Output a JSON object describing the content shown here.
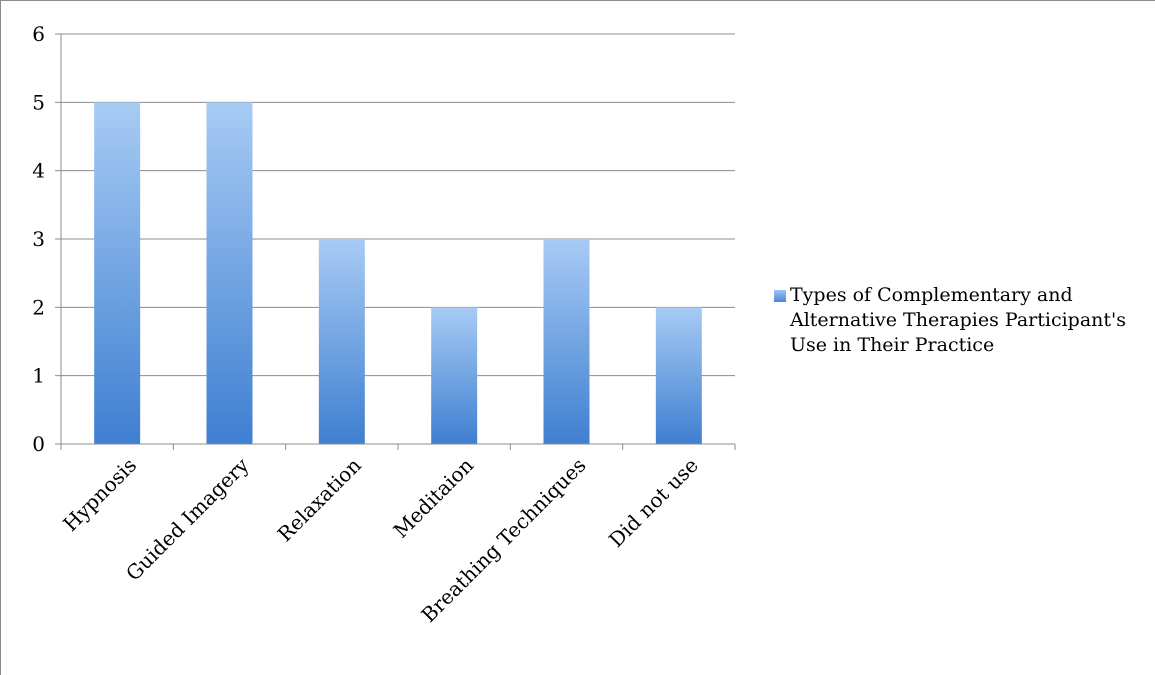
{
  "chart_data": {
    "type": "bar",
    "categories": [
      "Hypnosis",
      "Guided Imagery",
      "Relaxation",
      "Meditaion",
      "Breathing Techniques",
      "Did not use"
    ],
    "series": [
      {
        "name": "Types of Complementary and Alternative Therapies Participant's Use in Their Practice",
        "values": [
          5,
          5,
          3,
          2,
          3,
          2
        ]
      }
    ],
    "yticks": [
      "0",
      "1",
      "2",
      "3",
      "4",
      "5",
      "6"
    ],
    "ylim": [
      0,
      6
    ],
    "grid": true,
    "legend_position": "right",
    "colors": {
      "bar_top": "#a7cbf4",
      "bar_bottom": "#3f7fd1",
      "grid": "#8c8c8c"
    }
  }
}
